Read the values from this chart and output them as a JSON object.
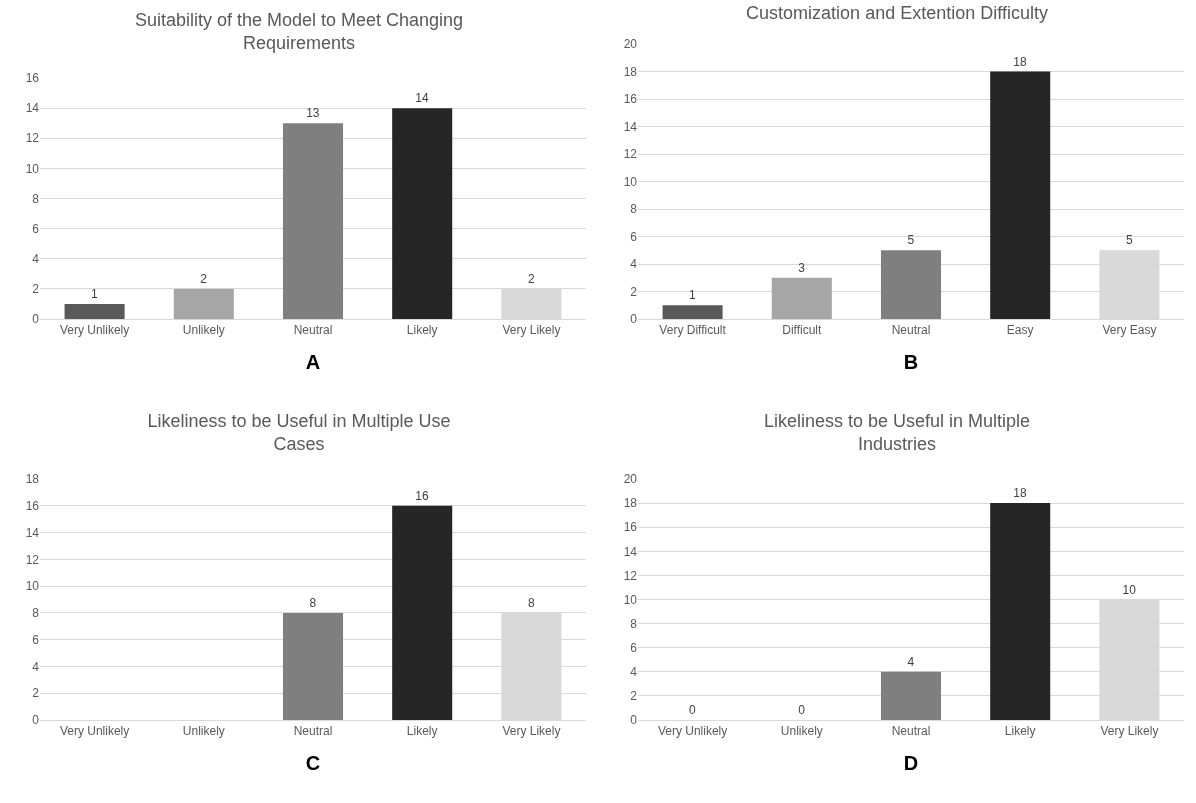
{
  "chart_data": [
    {
      "type": "bar",
      "title": "Suitability of the Model to Meet Changing Requirements",
      "xlabel": "A",
      "categories": [
        "Very Unlikely",
        "Unlikely",
        "Neutral",
        "Likely",
        "Very Likely"
      ],
      "values": [
        1,
        2,
        13,
        14,
        2
      ],
      "colors": [
        "#595959",
        "#a6a6a6",
        "#7f7f7f",
        "#262626",
        "#d9d9d9"
      ],
      "ylim": [
        0,
        16
      ],
      "yticks": [
        0,
        2,
        4,
        6,
        8,
        10,
        12,
        14,
        16
      ],
      "grid": "y",
      "data_labels": true
    },
    {
      "type": "bar",
      "title": "Customization and Extention Difficulty",
      "xlabel": "B",
      "categories": [
        "Very Difficult",
        "Difficult",
        "Neutral",
        "Easy",
        "Very Easy"
      ],
      "values": [
        1,
        3,
        5,
        18,
        5
      ],
      "colors": [
        "#595959",
        "#a6a6a6",
        "#7f7f7f",
        "#262626",
        "#d9d9d9"
      ],
      "ylim": [
        0,
        20
      ],
      "yticks": [
        0,
        2,
        4,
        6,
        8,
        10,
        12,
        14,
        16,
        18,
        20
      ],
      "grid": "y",
      "data_labels": true
    },
    {
      "type": "bar",
      "title": "Likeliness to be Useful in Multiple Use Cases",
      "xlabel": "C",
      "categories": [
        "Very Unlikely",
        "Unlikely",
        "Neutral",
        "Likely",
        "Very Likely"
      ],
      "values": [
        0,
        0,
        8,
        16,
        8
      ],
      "value_labels": [
        null,
        null,
        "8",
        "16",
        "8"
      ],
      "colors": [
        "#595959",
        "#a6a6a6",
        "#7f7f7f",
        "#262626",
        "#d9d9d9"
      ],
      "ylim": [
        0,
        18
      ],
      "yticks": [
        0,
        2,
        4,
        6,
        8,
        10,
        12,
        14,
        16,
        18
      ],
      "grid": "y"
    },
    {
      "type": "bar",
      "title": "Likeliness to be Useful in Multiple Industries",
      "xlabel": "D",
      "categories": [
        "Very Unlikely",
        "Unlikely",
        "Neutral",
        "Likely",
        "Very Likely"
      ],
      "values": [
        0,
        0,
        4,
        18,
        10
      ],
      "colors": [
        "#595959",
        "#a6a6a6",
        "#7f7f7f",
        "#262626",
        "#d9d9d9"
      ],
      "ylim": [
        0,
        20
      ],
      "yticks": [
        0,
        2,
        4,
        6,
        8,
        10,
        12,
        14,
        16,
        18,
        20
      ],
      "grid": "y",
      "data_labels": true
    }
  ]
}
